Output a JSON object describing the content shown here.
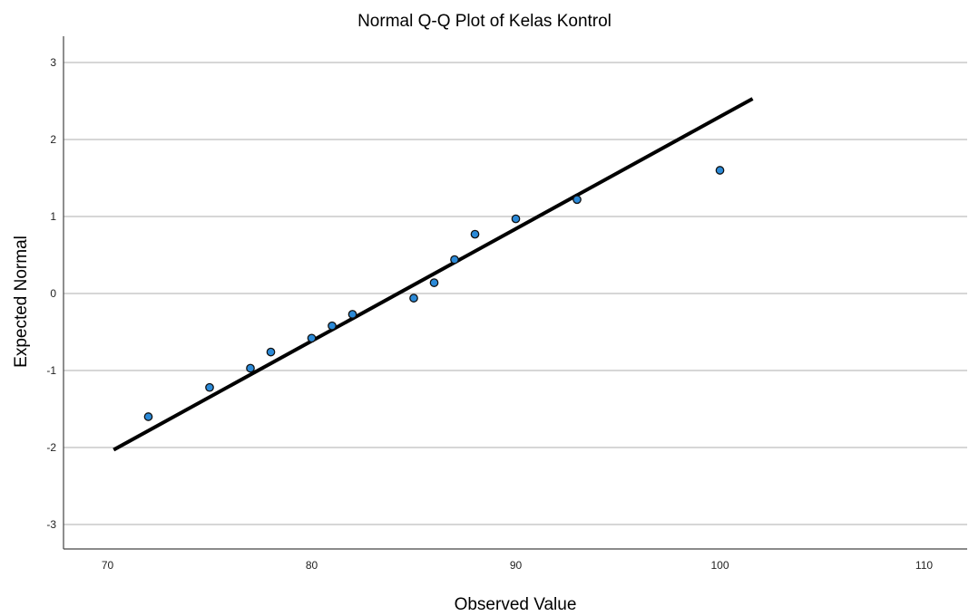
{
  "chart_data": {
    "type": "scatter",
    "title": "Normal Q-Q Plot of Kelas Kontrol",
    "xlabel": "Observed Value",
    "ylabel": "Expected Normal",
    "xlim": [
      68,
      112
    ],
    "ylim": [
      -3.3,
      3.3
    ],
    "x_ticks": [
      70,
      80,
      90,
      100,
      110
    ],
    "y_ticks": [
      -3,
      -2,
      -1,
      0,
      1,
      2,
      3
    ],
    "grid": true,
    "point_color": "#2b8ad8",
    "line_color": "#000000",
    "points": [
      {
        "x": 72,
        "y": -1.6
      },
      {
        "x": 75,
        "y": -1.22
      },
      {
        "x": 77,
        "y": -0.97
      },
      {
        "x": 78,
        "y": -0.76
      },
      {
        "x": 80,
        "y": -0.58
      },
      {
        "x": 81,
        "y": -0.42
      },
      {
        "x": 82,
        "y": -0.27
      },
      {
        "x": 85,
        "y": -0.06
      },
      {
        "x": 86,
        "y": 0.14
      },
      {
        "x": 87,
        "y": 0.44
      },
      {
        "x": 88,
        "y": 0.77
      },
      {
        "x": 90,
        "y": 0.97
      },
      {
        "x": 93,
        "y": 1.22
      },
      {
        "x": 100,
        "y": 1.6
      }
    ],
    "reference_line": {
      "x": [
        70.3,
        101.6
      ],
      "y": [
        -2.03,
        2.53
      ]
    }
  }
}
